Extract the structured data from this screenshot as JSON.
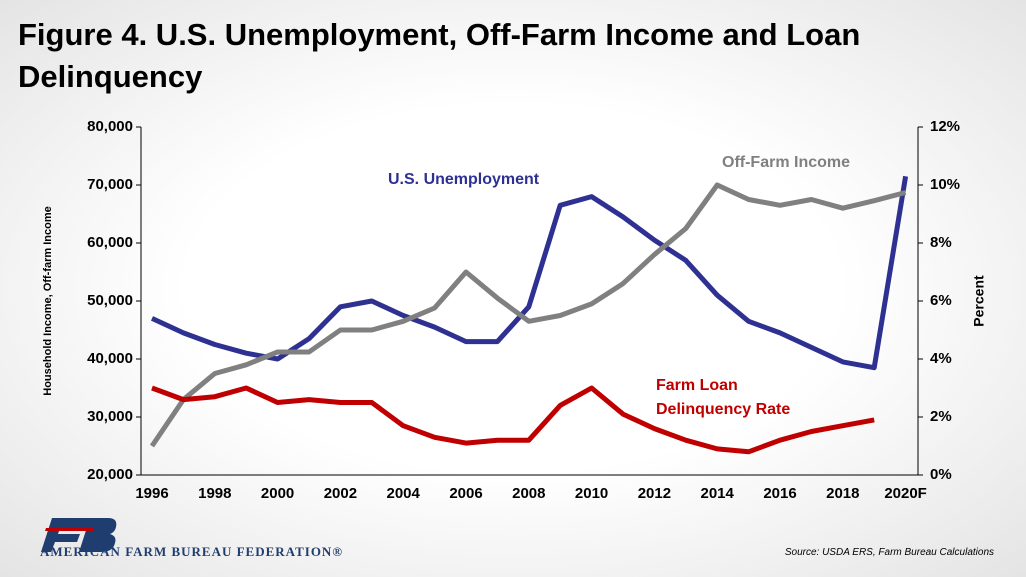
{
  "chart_data": {
    "type": "line",
    "title": "Figure 4. U.S. Unemployment, Off-Farm Income and Loan Delinquency",
    "ylabel": "Household Income, Off-farm Income",
    "y2label": "Percent",
    "source": "Source: USDA ERS, Farm Bureau Calculations",
    "organization": "AMERICAN FARM BUREAU FEDERATION®",
    "categories": [
      "1996",
      null,
      "1998",
      null,
      "2000",
      null,
      "2002",
      null,
      "2004",
      null,
      "2006",
      null,
      "2008",
      null,
      "2010",
      null,
      "2012",
      null,
      "2014",
      null,
      "2016",
      null,
      "2018",
      null,
      "2020F"
    ],
    "ylim": [
      20000,
      80000
    ],
    "yticks": [
      {
        "value": 20000,
        "label": "20,000"
      },
      {
        "value": 30000,
        "label": "30,000"
      },
      {
        "value": 40000,
        "label": "40,000"
      },
      {
        "value": 50000,
        "label": "50,000"
      },
      {
        "value": 60000,
        "label": "60,000"
      },
      {
        "value": 70000,
        "label": "70,000"
      },
      {
        "value": 80000,
        "label": "80,000"
      }
    ],
    "y2lim": [
      0,
      12
    ],
    "y2ticks": [
      {
        "value": 0,
        "label": "0%"
      },
      {
        "value": 2,
        "label": "2%"
      },
      {
        "value": 4,
        "label": "4%"
      },
      {
        "value": 6,
        "label": "6%"
      },
      {
        "value": 8,
        "label": "8%"
      },
      {
        "value": 10,
        "label": "10%"
      },
      {
        "value": 12,
        "label": "12%"
      }
    ],
    "series": [
      {
        "name": "U.S. Unemployment",
        "color": "#2e3192",
        "axis": "y2",
        "values": [
          5.4,
          4.9,
          4.5,
          4.2,
          4.0,
          4.7,
          5.8,
          6.0,
          5.5,
          5.1,
          4.6,
          4.6,
          5.8,
          9.3,
          9.6,
          8.9,
          8.1,
          7.4,
          6.2,
          5.3,
          4.9,
          4.4,
          3.9,
          3.7,
          10.3
        ]
      },
      {
        "name": "Off-Farm Income",
        "color": "#808080",
        "values": [
          25000,
          33000,
          37500,
          39000,
          41200,
          41200,
          45000,
          45000,
          46500,
          48800,
          55000,
          50500,
          46500,
          47500,
          49500,
          53000,
          58000,
          62500,
          70000,
          67500,
          66500,
          67500,
          66000,
          67300,
          68700
        ]
      },
      {
        "name": "Farm Loan Delinquency Rate",
        "color": "#c00000",
        "axis": "y2",
        "values": [
          3.0,
          2.6,
          2.7,
          3.0,
          2.5,
          2.6,
          2.5,
          2.5,
          1.7,
          1.3,
          1.1,
          1.2,
          1.2,
          2.4,
          3.0,
          2.1,
          1.6,
          1.2,
          0.9,
          0.8,
          1.2,
          1.5,
          1.7,
          1.9,
          null
        ]
      }
    ]
  }
}
